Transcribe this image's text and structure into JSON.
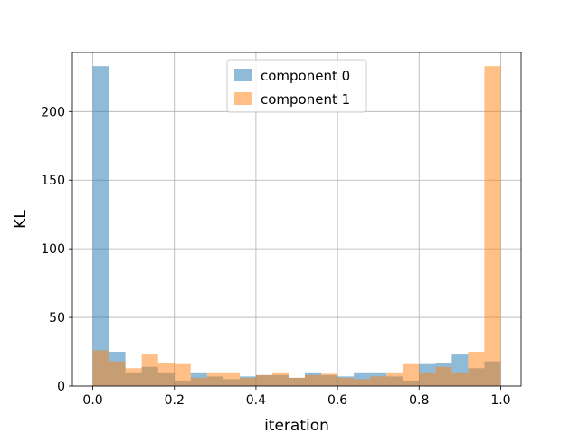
{
  "chart_data": {
    "type": "histogram",
    "title": "",
    "xlabel": "iteration",
    "ylabel": "KL",
    "xlim": [
      -0.05,
      1.05
    ],
    "ylim": [
      0,
      243
    ],
    "grid": true,
    "legend_position": "top-center",
    "bin_edges": [
      0.0,
      0.04,
      0.08,
      0.12,
      0.16,
      0.2,
      0.24,
      0.28,
      0.32,
      0.36,
      0.4,
      0.44,
      0.48,
      0.52,
      0.56,
      0.6,
      0.64,
      0.68,
      0.72,
      0.76,
      0.8,
      0.84,
      0.88,
      0.92,
      0.96,
      1.0
    ],
    "x_ticks": [
      0.0,
      0.2,
      0.4,
      0.6,
      0.8,
      1.0
    ],
    "x_tick_labels": [
      "0.0",
      "0.2",
      "0.4",
      "0.6",
      "0.8",
      "1.0"
    ],
    "y_ticks": [
      0,
      50,
      100,
      150,
      200
    ],
    "y_tick_labels": [
      "0",
      "50",
      "100",
      "150",
      "200"
    ],
    "series": [
      {
        "name": "component 0",
        "color": "#1f77b4",
        "values": [
          233,
          25,
          10,
          14,
          10,
          4,
          10,
          7,
          5,
          7,
          8,
          8,
          6,
          10,
          8,
          7,
          10,
          10,
          7,
          4,
          16,
          17,
          23,
          13,
          18
        ]
      },
      {
        "name": "component 1",
        "color": "#ff7f0e",
        "values": [
          26,
          18,
          13,
          23,
          17,
          16,
          6,
          10,
          10,
          6,
          8,
          10,
          6,
          8,
          9,
          6,
          5,
          7,
          10,
          16,
          10,
          14,
          10,
          25,
          233
        ]
      }
    ],
    "overlap_color": "#c7906b",
    "grid_color": "#b0b0b0"
  }
}
